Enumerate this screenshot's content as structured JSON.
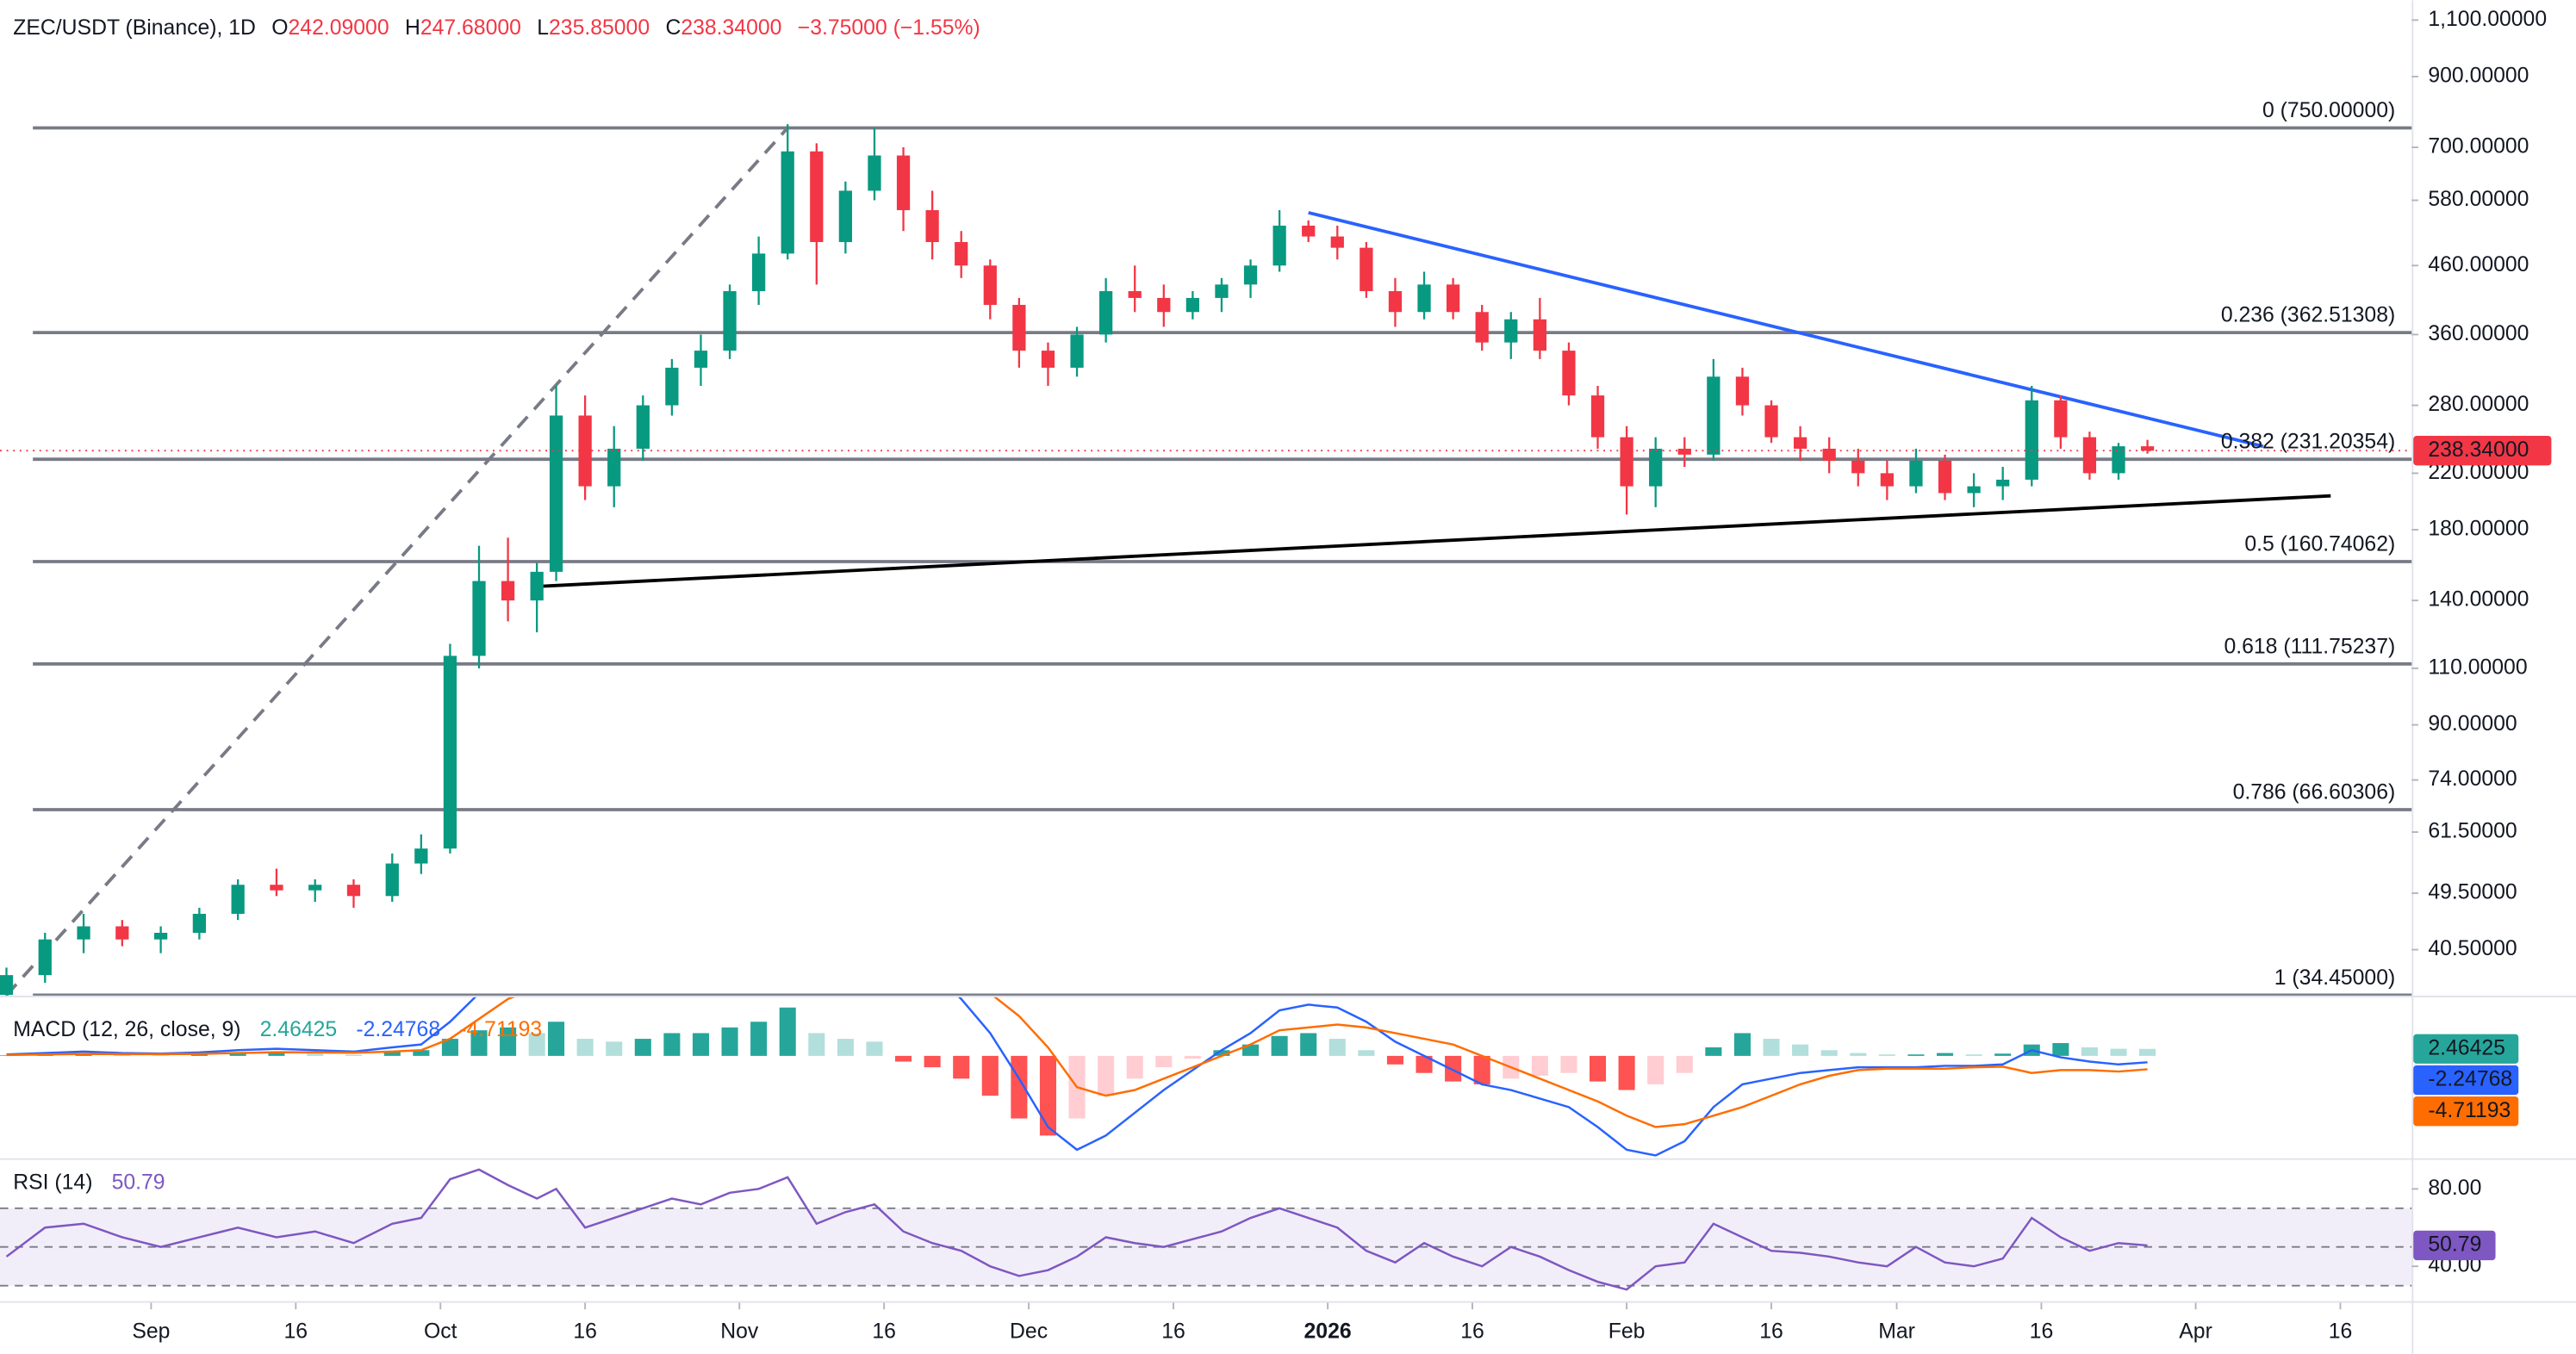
{
  "chart_data": [
    {
      "type": "candlestick",
      "title": "ZEC/USDT (Binance), 1D",
      "legend": [
        {
          "key": "O",
          "text": "242.09000"
        },
        {
          "key": "H",
          "text": "247.68000"
        },
        {
          "key": "L",
          "text": "235.85000"
        },
        {
          "key": "C",
          "text": "238.34000"
        }
      ],
      "change": "−3.75000 (−1.55%)",
      "last_price_label": "238.34000",
      "log_scale": true,
      "up_color": "#089981",
      "down_color": "#f23645",
      "x": [
        -15,
        -11,
        -7,
        -3,
        1,
        5,
        9,
        13,
        17,
        21,
        25,
        28,
        31,
        34,
        37,
        40,
        42,
        45,
        48,
        51,
        54,
        57,
        60,
        63,
        66,
        69,
        72,
        75,
        78,
        81,
        84,
        87,
        90,
        93,
        96,
        99,
        102,
        105,
        108,
        111,
        114,
        117,
        120,
        123,
        126,
        129,
        132,
        135,
        138,
        141,
        144,
        147,
        150,
        153,
        156,
        159,
        162,
        165,
        168,
        171,
        174,
        177,
        180,
        183,
        186,
        189,
        192,
        195,
        198,
        201,
        204,
        207
      ],
      "open": [
        34.5,
        37,
        42,
        44,
        42,
        43,
        46,
        51,
        50,
        51,
        49,
        55,
        58,
        115,
        150,
        140,
        155,
        270,
        210,
        240,
        280,
        320,
        340,
        420,
        480,
        690,
        500,
        600,
        680,
        560,
        500,
        460,
        400,
        340,
        320,
        360,
        420,
        410,
        390,
        410,
        430,
        460,
        530,
        510,
        490,
        420,
        390,
        430,
        390,
        350,
        380,
        340,
        290,
        250,
        210,
        240,
        235,
        310,
        280,
        250,
        240,
        230,
        220,
        210,
        230,
        205,
        210,
        215,
        285,
        250,
        220,
        242.09
      ],
      "high": [
        38,
        43,
        46,
        45,
        44,
        47,
        52,
        54,
        52,
        52,
        57,
        61,
        120,
        170,
        175,
        160,
        300,
        290,
        260,
        290,
        330,
        360,
        430,
        510,
        760,
        710,
        620,
        750,
        700,
        600,
        520,
        470,
        410,
        350,
        370,
        440,
        460,
        430,
        420,
        440,
        470,
        560,
        540,
        530,
        500,
        440,
        450,
        440,
        400,
        390,
        410,
        350,
        300,
        260,
        250,
        250,
        330,
        320,
        285,
        260,
        250,
        240,
        230,
        240,
        235,
        220,
        225,
        300,
        290,
        255,
        245,
        247.68
      ],
      "low": [
        33,
        36,
        40,
        41,
        40,
        42,
        45,
        49,
        48,
        47,
        48,
        53,
        57,
        110,
        130,
        125,
        150,
        200,
        195,
        230,
        270,
        300,
        330,
        400,
        470,
        430,
        480,
        580,
        520,
        470,
        440,
        380,
        320,
        300,
        310,
        350,
        390,
        370,
        380,
        390,
        410,
        450,
        500,
        470,
        410,
        370,
        380,
        380,
        340,
        330,
        330,
        280,
        240,
        190,
        195,
        225,
        230,
        270,
        245,
        230,
        220,
        210,
        200,
        205,
        200,
        195,
        200,
        210,
        240,
        215,
        215,
        235.85
      ],
      "close": [
        37,
        42,
        44,
        42,
        43,
        46,
        51,
        50,
        51,
        49,
        55,
        58,
        115,
        150,
        140,
        155,
        270,
        210,
        240,
        280,
        320,
        340,
        420,
        480,
        690,
        500,
        600,
        680,
        560,
        500,
        460,
        400,
        340,
        320,
        360,
        420,
        410,
        390,
        410,
        430,
        460,
        530,
        510,
        490,
        420,
        390,
        430,
        390,
        350,
        380,
        340,
        290,
        250,
        210,
        240,
        235,
        310,
        280,
        250,
        240,
        230,
        220,
        210,
        230,
        205,
        210,
        215,
        285,
        250,
        220,
        242.09,
        238.34
      ],
      "xlim": [
        -15.67,
        234.4
      ],
      "xticks": [
        {
          "value": 0,
          "label": "Sep"
        },
        {
          "value": 15,
          "label": "16"
        },
        {
          "value": 30,
          "label": "Oct"
        },
        {
          "value": 45,
          "label": "16"
        },
        {
          "value": 61,
          "label": "Nov"
        },
        {
          "value": 76,
          "label": "16"
        },
        {
          "value": 91,
          "label": "Dec"
        },
        {
          "value": 106,
          "label": "16"
        },
        {
          "value": 122,
          "label": "2026"
        },
        {
          "value": 137,
          "label": "16"
        },
        {
          "value": 153,
          "label": "Feb"
        },
        {
          "value": 168,
          "label": "16"
        },
        {
          "value": 181,
          "label": "Mar"
        },
        {
          "value": 196,
          "label": "16"
        },
        {
          "value": 212,
          "label": "Apr"
        },
        {
          "value": 227,
          "label": "16"
        }
      ],
      "ylim": [
        34.4,
        1180
      ],
      "yticks": [
        {
          "value": 40.5,
          "label": "40.50000"
        },
        {
          "value": 49.5,
          "label": "49.50000"
        },
        {
          "value": 61.5,
          "label": "61.50000"
        },
        {
          "value": 74,
          "label": "74.00000"
        },
        {
          "value": 90,
          "label": "90.00000"
        },
        {
          "value": 110,
          "label": "110.00000"
        },
        {
          "value": 140,
          "label": "140.00000"
        },
        {
          "value": 180,
          "label": "180.00000"
        },
        {
          "value": 220,
          "label": "220.00000"
        },
        {
          "value": 280,
          "label": "280.00000"
        },
        {
          "value": 360,
          "label": "360.00000"
        },
        {
          "value": 460,
          "label": "460.00000"
        },
        {
          "value": 580,
          "label": "580.00000"
        },
        {
          "value": 700,
          "label": "700.00000"
        },
        {
          "value": 900,
          "label": "900.00000"
        },
        {
          "value": 1100,
          "label": "1,100.00000"
        }
      ],
      "fib_levels": [
        {
          "value": 750,
          "label": "0 (750.00000)"
        },
        {
          "value": 362.51308,
          "label": "0.236 (362.51308)"
        },
        {
          "value": 231.20354,
          "label": "0.382 (231.20354)"
        },
        {
          "value": 160.74062,
          "label": "0.5 (160.74062)"
        },
        {
          "value": 111.75237,
          "label": "0.618 (111.75237)"
        },
        {
          "value": 66.60306,
          "label": "0.786 (66.60306)"
        },
        {
          "value": 34.45,
          "label": "1 (34.45000)"
        }
      ],
      "fib_color": "#787b86",
      "lines": [
        {
          "x": [
            -15,
            66
          ],
          "y": [
            34.45,
            750
          ],
          "color": "#787b86",
          "dash": true
        },
        {
          "x": [
            120,
            219
          ],
          "y": [
            555,
            242
          ],
          "color": "#2962ff"
        },
        {
          "x": [
            39.5,
            226
          ],
          "y": [
            147,
            203
          ],
          "color": "#000000"
        }
      ]
    },
    {
      "type": "macd",
      "title": "MACD (12, 26, close, 9)",
      "ylim": [
        -35.4,
        20.6
      ],
      "histogram": [
        0.2,
        0.5,
        0.8,
        0.4,
        0.2,
        0.5,
        1,
        1.2,
        0.8,
        0.4,
        1.5,
        2,
        6,
        9,
        10,
        8,
        12,
        6,
        5,
        6,
        8,
        8,
        10,
        12,
        17,
        8,
        6,
        5,
        -2,
        -4,
        -8,
        -14,
        -22,
        -28,
        -22,
        -14,
        -8,
        -4,
        -1,
        2,
        4,
        7,
        8,
        6,
        2,
        -3,
        -6,
        -9,
        -10,
        -8,
        -7,
        -6,
        -9,
        -12,
        -10,
        -6,
        3,
        8,
        6,
        4,
        2,
        1,
        0.5,
        0.5,
        1,
        0.5,
        0.8,
        4,
        4.5,
        3,
        2.5,
        2.46425
      ],
      "macd": [
        0.5,
        1,
        1.5,
        1,
        0.8,
        1.2,
        2,
        2.5,
        2,
        1.5,
        3,
        4,
        12,
        22,
        30,
        32,
        40,
        38,
        36,
        38,
        42,
        45,
        50,
        55,
        65,
        55,
        50,
        48,
        38,
        30,
        20,
        8,
        -8,
        -25,
        -33,
        -28,
        -20,
        -12,
        -5,
        2,
        8,
        16,
        18,
        17,
        12,
        5,
        0,
        -5,
        -10,
        -12,
        -15,
        -18,
        -25,
        -33,
        -35,
        -30,
        -18,
        -10,
        -8,
        -6,
        -5,
        -4,
        -4,
        -4,
        -3.5,
        -3.5,
        -3,
        2,
        -0.5,
        -2,
        -3,
        -2.24768
      ],
      "signal": [
        0.3,
        0.5,
        0.7,
        0.6,
        0.6,
        0.7,
        1,
        1.3,
        1.2,
        1.1,
        1.5,
        2,
        6,
        13,
        20,
        24,
        28,
        32,
        31,
        32,
        34,
        37,
        40,
        43,
        48,
        47,
        44,
        43,
        40,
        34,
        28,
        22,
        14,
        3,
        -11,
        -14,
        -12,
        -8,
        -4,
        0,
        4,
        9,
        10,
        11,
        10,
        8,
        6,
        4,
        0,
        -4,
        -8,
        -12,
        -16,
        -21,
        -25,
        -24,
        -21,
        -18,
        -14,
        -10,
        -7,
        -5,
        -4.5,
        -4.5,
        -4.5,
        -4,
        -3.8,
        -6,
        -5,
        -5,
        -5.5,
        -4.71193
      ],
      "hist_colors": [
        "#26a69a",
        "#b2dfdb",
        "#ff5252",
        "#ffcdd2"
      ],
      "macd_color": "#2962ff",
      "signal_color": "#ff6d00"
    },
    {
      "type": "rsi",
      "title": "RSI (14)",
      "ylim": [
        22,
        95
      ],
      "yticks": [
        {
          "value": 80,
          "label": "80.00"
        },
        {
          "value": 40,
          "label": "40.00"
        }
      ],
      "band": [
        30,
        70
      ],
      "midline": 50,
      "color": "#7e57c2",
      "values": [
        45,
        60,
        62,
        55,
        50,
        55,
        60,
        55,
        58,
        52,
        62,
        65,
        85,
        90,
        82,
        75,
        80,
        60,
        65,
        70,
        75,
        72,
        78,
        80,
        86,
        62,
        68,
        72,
        58,
        52,
        48,
        40,
        35,
        38,
        45,
        55,
        52,
        50,
        54,
        58,
        65,
        70,
        65,
        60,
        48,
        42,
        52,
        45,
        40,
        50,
        45,
        38,
        32,
        28,
        40,
        42,
        62,
        55,
        48,
        47,
        45,
        42,
        40,
        50,
        42,
        40,
        44,
        65,
        55,
        48,
        52,
        50.79
      ]
    }
  ]
}
